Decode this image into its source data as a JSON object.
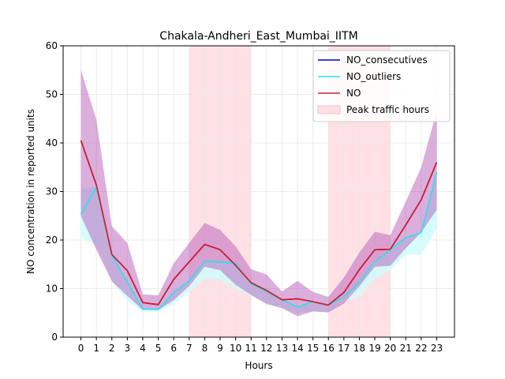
{
  "chart_data": {
    "type": "line",
    "title": "Chakala-Andheri_East_Mumbai_IITM",
    "xlabel": "Hours",
    "ylabel": "NO concentration in reported units",
    "x": [
      0,
      1,
      2,
      3,
      4,
      5,
      6,
      7,
      8,
      9,
      10,
      11,
      12,
      13,
      14,
      15,
      16,
      17,
      18,
      19,
      20,
      21,
      22,
      23
    ],
    "xlim": [
      -1.15,
      24.15
    ],
    "ylim": [
      0,
      60
    ],
    "yticks": [
      0,
      10,
      20,
      30,
      40,
      50,
      60
    ],
    "grid": true,
    "legend_position": "upper right",
    "peak_traffic_hours": [
      [
        7,
        11
      ],
      [
        16,
        20
      ]
    ],
    "series": [
      {
        "name": "NO_consecutives",
        "color": "#0000cc",
        "values": [
          40.5,
          31.3,
          17.0,
          13.7,
          7.1,
          6.7,
          11.9,
          15.5,
          19.1,
          18.0,
          14.8,
          11.2,
          9.6,
          7.7,
          7.9,
          7.3,
          6.6,
          9.2,
          13.9,
          18.0,
          18.1,
          23.1,
          28.3,
          36.0
        ],
        "band_low": [
          25.0,
          18.0,
          11.5,
          8.5,
          5.6,
          5.6,
          7.6,
          10.5,
          14.5,
          13.8,
          10.8,
          8.7,
          6.8,
          6.0,
          4.3,
          5.3,
          5.1,
          6.9,
          10.5,
          14.5,
          14.7,
          18.3,
          21.6,
          26.2
        ],
        "band_high": [
          55.0,
          44.8,
          22.8,
          19.4,
          8.8,
          8.6,
          15.2,
          19.4,
          23.5,
          22.1,
          18.7,
          14.0,
          12.9,
          9.4,
          11.6,
          9.3,
          8.3,
          12.3,
          17.4,
          21.7,
          21.0,
          27.9,
          35.0,
          46.5
        ]
      },
      {
        "name": "NO_outliers",
        "color": "#22e5ee",
        "values": [
          25.3,
          30.9,
          16.9,
          11.3,
          5.8,
          5.7,
          9.2,
          11.6,
          15.6,
          15.5,
          15.2,
          11.0,
          9.4,
          7.7,
          6.2,
          7.3,
          6.6,
          8.3,
          11.3,
          15.5,
          18.0,
          20.5,
          21.5,
          34.0
        ],
        "band_low": [
          20.5,
          18.9,
          11.5,
          7.5,
          5.3,
          5.3,
          6.8,
          9.4,
          12.0,
          11.9,
          10.0,
          8.5,
          7.0,
          6.0,
          5.0,
          5.3,
          5.1,
          7.4,
          8.4,
          12.0,
          13.8,
          17.0,
          17.0,
          22.4
        ],
        "band_high": [
          30.6,
          30.9,
          16.9,
          11.3,
          5.8,
          5.7,
          9.2,
          11.6,
          15.6,
          15.5,
          15.2,
          11.0,
          9.4,
          7.7,
          6.2,
          7.3,
          6.6,
          8.3,
          11.3,
          15.5,
          18.0,
          20.5,
          21.5,
          34.0
        ]
      },
      {
        "name": "NO",
        "color": "#d62020",
        "values": [
          40.5,
          31.3,
          17.0,
          13.7,
          7.1,
          6.7,
          11.9,
          15.5,
          19.1,
          18.0,
          14.8,
          11.2,
          9.6,
          7.7,
          7.9,
          7.3,
          6.6,
          9.2,
          13.9,
          18.0,
          18.1,
          23.1,
          28.3,
          36.0
        ],
        "band_low": [
          25.0,
          18.0,
          11.5,
          8.5,
          5.6,
          5.6,
          7.6,
          10.5,
          14.5,
          13.8,
          10.8,
          8.7,
          6.8,
          6.0,
          4.3,
          5.3,
          5.1,
          6.9,
          10.5,
          14.5,
          14.7,
          18.3,
          21.6,
          26.2
        ],
        "band_high": [
          55.0,
          44.8,
          22.8,
          19.4,
          8.8,
          8.6,
          15.2,
          19.4,
          23.5,
          22.1,
          18.7,
          14.0,
          12.9,
          9.4,
          11.6,
          9.3,
          8.3,
          12.3,
          17.4,
          21.7,
          21.0,
          27.9,
          35.0,
          46.5
        ]
      }
    ],
    "legend": [
      {
        "label": "NO_consecutives",
        "kind": "line",
        "color": "#0000cc"
      },
      {
        "label": "NO_outliers",
        "kind": "line",
        "color": "#22e5ee"
      },
      {
        "label": "NO",
        "kind": "line",
        "color": "#d62020"
      },
      {
        "label": "Peak traffic hours",
        "kind": "patch",
        "color": "#fde0e4"
      }
    ],
    "colors": {
      "peak_fill": "#ffe1e5",
      "band_purple": "#b256b8",
      "band_cyan": "#cffcfc"
    }
  }
}
